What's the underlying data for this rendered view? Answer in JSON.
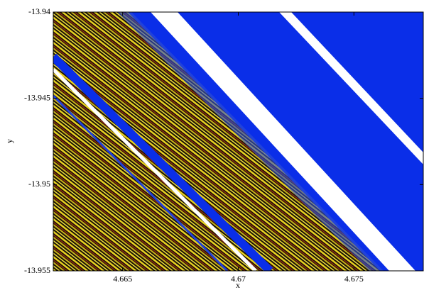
{
  "chart_data": {
    "type": "heatmap",
    "xlabel": "x",
    "ylabel": "y",
    "xlim": [
      4.662,
      4.678
    ],
    "ylim": [
      -13.955,
      -13.94
    ],
    "xticks": [
      4.665,
      4.67,
      4.675
    ],
    "yticks": [
      -13.955,
      -13.95,
      -13.945,
      -13.94
    ]
  }
}
